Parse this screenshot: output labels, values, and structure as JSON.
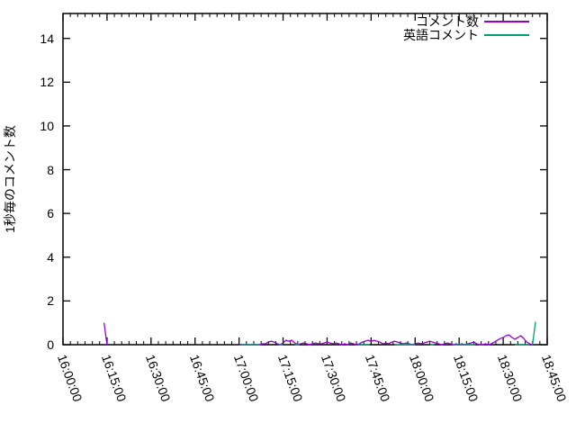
{
  "chart_data": {
    "type": "line",
    "title": "",
    "xlabel": "",
    "ylabel": "1秒毎のコメント数",
    "grid": false,
    "background": "#ffffff",
    "border_color": "#000000",
    "x_axis": {
      "unit": "time (HH:MM:SS)",
      "range_minutes_after_1600": [
        0,
        165
      ],
      "major_tick_interval_minutes": 15,
      "minor_tick_interval_minutes": 2.5,
      "tick_minutes": [
        0,
        15,
        30,
        45,
        60,
        75,
        90,
        105,
        120,
        135,
        150,
        165
      ],
      "tick_labels": [
        "16:00:00",
        "16:15:00",
        "16:30:00",
        "16:45:00",
        "17:00:00",
        "17:15:00",
        "17:30:00",
        "17:45:00",
        "18:00:00",
        "18:15:00",
        "18:30:00",
        "18:45:00"
      ],
      "tick_label_rotation_deg": 70
    },
    "y_axis": {
      "range": [
        0,
        15.14
      ],
      "ticks": [
        0,
        2,
        4,
        6,
        8,
        10,
        12,
        14
      ]
    },
    "legend": {
      "position": "top-right-inside",
      "entries": [
        "コメント数",
        "英語コメント"
      ]
    },
    "series": [
      {
        "name": "コメント数",
        "color": "#9400d3",
        "segments": [
          [
            [
              14,
              1
            ],
            [
              15,
              0
            ]
          ],
          [
            [
              60,
              0
            ],
            [
              61,
              0
            ],
            [
              62,
              0
            ],
            [
              63,
              0
            ],
            [
              64,
              0
            ],
            [
              65,
              0
            ],
            [
              66,
              0
            ],
            [
              67,
              0
            ],
            [
              68,
              0.04
            ],
            [
              69,
              0.04
            ],
            [
              70,
              0.12
            ],
            [
              71,
              0.16
            ],
            [
              72,
              0.12
            ],
            [
              73,
              0.04
            ],
            [
              74,
              0
            ],
            [
              75,
              0.08
            ],
            [
              76,
              0.2
            ],
            [
              77,
              0.16
            ],
            [
              78,
              0.2
            ],
            [
              79,
              0.08
            ],
            [
              80,
              0
            ],
            [
              81,
              0.04
            ],
            [
              82,
              0.08
            ],
            [
              83,
              0.04
            ],
            [
              84,
              0
            ],
            [
              85,
              0.04
            ],
            [
              86,
              0.08
            ],
            [
              87,
              0.04
            ],
            [
              88,
              0.04
            ],
            [
              89,
              0.08
            ],
            [
              90,
              0.12
            ],
            [
              91,
              0.08
            ],
            [
              92,
              0.04
            ],
            [
              93,
              0.08
            ],
            [
              94,
              0.04
            ],
            [
              95,
              0
            ],
            [
              96,
              0.04
            ],
            [
              97,
              0
            ],
            [
              98,
              0.08
            ],
            [
              99,
              0.04
            ],
            [
              100,
              0
            ],
            [
              101,
              0.04
            ],
            [
              102,
              0.12
            ],
            [
              103,
              0.16
            ],
            [
              104,
              0.2
            ],
            [
              105,
              0.16
            ],
            [
              106,
              0.2
            ],
            [
              107,
              0.16
            ],
            [
              108,
              0.12
            ],
            [
              109,
              0.04
            ],
            [
              110,
              0.08
            ],
            [
              111,
              0.04
            ],
            [
              112,
              0.12
            ],
            [
              113,
              0.16
            ],
            [
              114,
              0.12
            ],
            [
              115,
              0.08
            ],
            [
              116,
              0.04
            ],
            [
              117,
              0.08
            ],
            [
              118,
              0.04
            ],
            [
              119,
              0
            ],
            [
              120,
              0.04
            ],
            [
              121,
              0.08
            ],
            [
              122,
              0.04
            ],
            [
              123,
              0.08
            ],
            [
              124,
              0.12
            ],
            [
              125,
              0.16
            ],
            [
              126,
              0.12
            ],
            [
              127,
              0.08
            ],
            [
              128,
              0.04
            ],
            [
              129,
              0
            ],
            [
              130,
              0.04
            ],
            [
              131,
              0.08
            ],
            [
              132,
              0.04
            ],
            [
              133,
              0
            ],
            [
              134,
              0.04
            ],
            [
              135,
              0
            ],
            [
              136,
              0.04
            ],
            [
              137,
              0
            ],
            [
              138,
              0.04
            ],
            [
              139,
              0.08
            ],
            [
              140,
              0.12
            ],
            [
              141,
              0.04
            ],
            [
              142,
              0
            ],
            [
              143,
              0
            ],
            [
              144,
              0.04
            ],
            [
              145,
              0
            ],
            [
              146,
              0.04
            ],
            [
              147,
              0.12
            ],
            [
              148,
              0.2
            ],
            [
              149,
              0.28
            ],
            [
              150,
              0.33
            ],
            [
              151,
              0.41
            ],
            [
              152,
              0.45
            ],
            [
              153,
              0.33
            ],
            [
              154,
              0.25
            ],
            [
              155,
              0.33
            ],
            [
              156,
              0.41
            ],
            [
              157,
              0.29
            ],
            [
              158,
              0.12
            ],
            [
              159,
              0.04
            ],
            [
              160,
              0
            ]
          ]
        ]
      },
      {
        "name": "英語コメント",
        "color": "#009e73",
        "segments": [
          [
            [
              60.5,
              0
            ],
            [
              67,
              0
            ]
          ],
          [
            [
              73.5,
              0
            ],
            [
              75,
              0
            ]
          ],
          [
            [
              79,
              0
            ],
            [
              80.5,
              0
            ]
          ],
          [
            [
              100.5,
              0
            ],
            [
              104.5,
              0
            ]
          ],
          [
            [
              113,
              0
            ],
            [
              120,
              0
            ]
          ],
          [
            [
              125,
              0
            ],
            [
              126.5,
              0
            ]
          ],
          [
            [
              133,
              0
            ],
            [
              140.5,
              0
            ]
          ],
          [
            [
              154,
              0
            ],
            [
              159,
              0
            ]
          ],
          [
            [
              160,
              0
            ],
            [
              161,
              1.05
            ]
          ]
        ]
      }
    ]
  }
}
